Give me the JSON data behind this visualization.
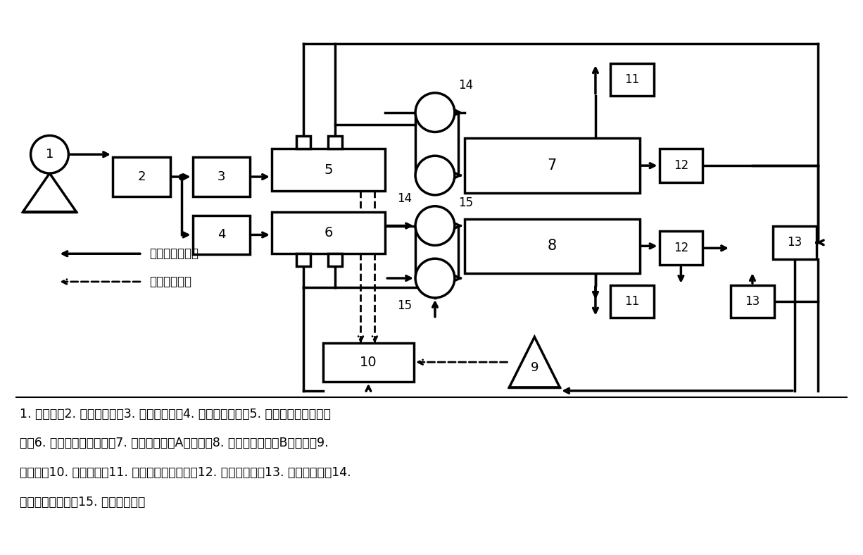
{
  "figsize": [
    12.26,
    7.88
  ],
  "dpi": 100,
  "bg_color": "white",
  "caption_lines": [
    "1. 空压机；2. 零气发生器；3. 臭氧发生器；4. 流量控制装置；5. 样品空气输出多支路",
    "管；6. 零气输出多支路管；7. 上级传递标准A光度计；8. 被校准传递标准B光度计；9.",
    "采样泵；10. 排气管路；11. 压力、温度传感器；12. 流量传感器；13. 流量控制器；14.",
    "样品空气电磁阀；15. 零空气电磁阀"
  ],
  "caption_fontsize": 12.5,
  "legend_solid_label": "校准用气路方向",
  "legend_dashed_label": "废气气路方向",
  "lw": 2.0,
  "lw_thick": 2.5
}
